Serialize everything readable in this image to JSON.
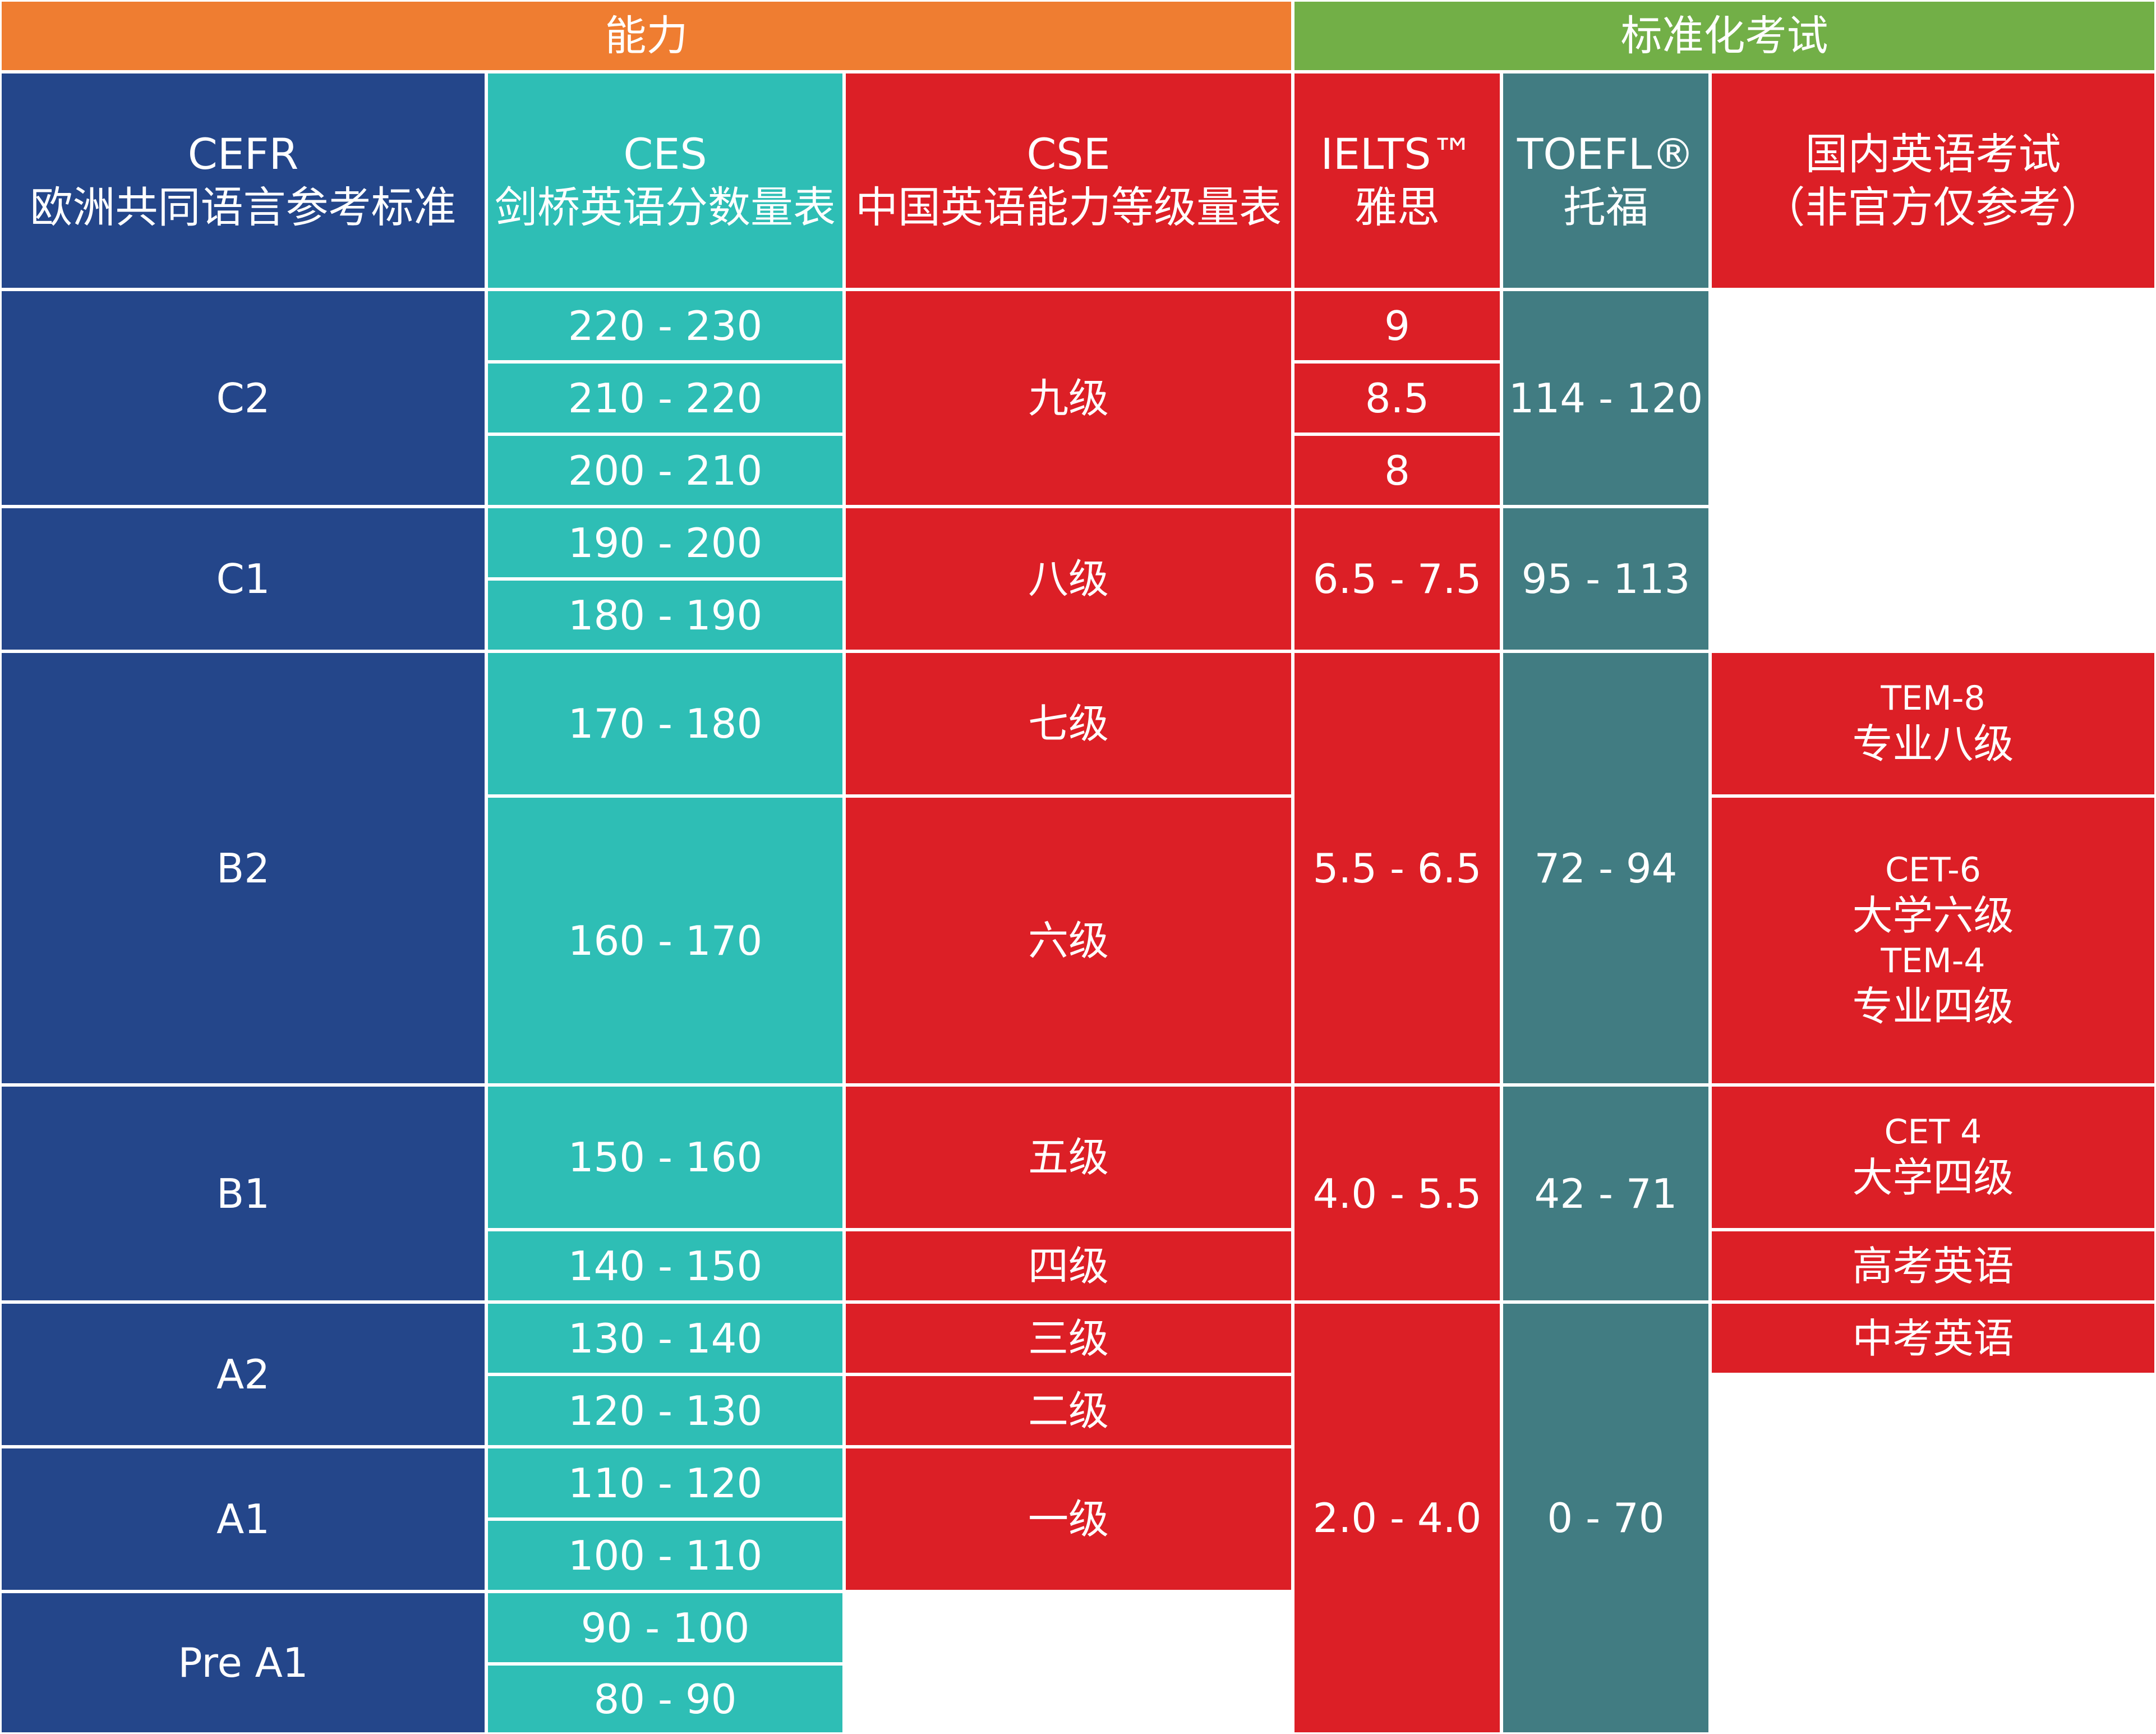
{
  "colors": {
    "orange": "#EF7D31",
    "green": "#72AF47",
    "navy": "#24468A",
    "teal": "#2EBEB5",
    "red": "#DC1F26",
    "slate": "#417C82"
  },
  "top": {
    "ability": "能力",
    "standardized_tests": "标准化考试"
  },
  "headers": {
    "cefr": {
      "line1": "CEFR",
      "line2": "欧洲共同语言参考标准"
    },
    "ces": {
      "line1": "CES",
      "line2": "剑桥英语分数量表"
    },
    "cse": {
      "line1": "CSE",
      "line2": "中国英语能力等级量表"
    },
    "ielts": {
      "line1": "IELTS™",
      "line2": "雅思"
    },
    "toefl": {
      "line1": "TOEFL®",
      "line2": "托福"
    },
    "domestic": {
      "line1": "国内英语考试",
      "line2": "（非官方仅参考）"
    }
  },
  "cefr": [
    "C2",
    "C1",
    "B2",
    "B1",
    "A2",
    "A1",
    "Pre A1"
  ],
  "ces": [
    "220 - 230",
    "210 - 220",
    "200 - 210",
    "190 - 200",
    "180 - 190",
    "170 - 180",
    "160 - 170",
    "150 - 160",
    "140 - 150",
    "130 - 140",
    "120 - 130",
    "110 - 120",
    "100 - 110",
    "90 - 100",
    "80 - 90"
  ],
  "cse": [
    "九级",
    "八级",
    "七级",
    "六级",
    "五级",
    "四级",
    "三级",
    "二级",
    "一级"
  ],
  "ielts": [
    "9",
    "8.5",
    "8",
    "6.5 - 7.5",
    "5.5 - 6.5",
    "4.0 - 5.5",
    "2.0 - 4.0"
  ],
  "toefl": [
    "114 - 120",
    "95 - 113",
    "72 - 94",
    "42 - 71",
    "0 - 70"
  ],
  "domestic": {
    "tem8_code": "TEM-8",
    "tem8_name": "专业八级",
    "cet6_code": "CET-6",
    "cet6_name": "大学六级",
    "tem4_code": "TEM-4",
    "tem4_name": "专业四级",
    "cet4_code": "CET 4",
    "cet4_name": "大学四级",
    "gaokao": "高考英语",
    "zhongkao": "中考英语"
  }
}
